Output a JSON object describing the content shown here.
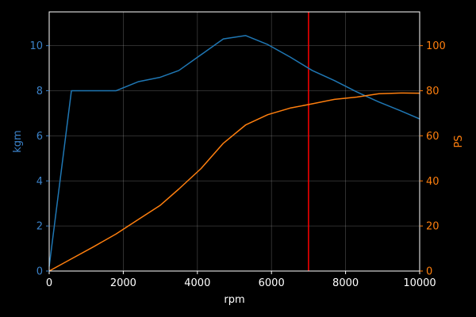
{
  "chart_data": {
    "type": "line",
    "xlabel": "rpm",
    "ylabel_left": "kgm",
    "ylabel_right": "PS",
    "xlim": [
      0,
      10000
    ],
    "ylim_left": [
      0,
      11.5
    ],
    "ylim_right": [
      0,
      115
    ],
    "x_ticks": [
      0,
      2000,
      4000,
      6000,
      8000,
      10000
    ],
    "y_ticks_left": [
      0,
      2,
      4,
      6,
      8,
      10
    ],
    "y_ticks_right": [
      0,
      20,
      40,
      60,
      80,
      100
    ],
    "grid": true,
    "vertical_line": {
      "x": 7000,
      "color": "#ff0000"
    },
    "series": [
      {
        "axis": "left",
        "color": "#1f77b4",
        "tick_color": "#3b82c9",
        "x": [
          0,
          600,
          1800,
          2400,
          3000,
          3500,
          4100,
          4700,
          5300,
          5900,
          6500,
          7100,
          7700,
          8300,
          8900,
          9500,
          10000
        ],
        "y": [
          0.2,
          8.0,
          8.0,
          8.4,
          8.6,
          8.9,
          9.6,
          10.3,
          10.45,
          10.05,
          9.5,
          8.9,
          8.45,
          7.95,
          7.5,
          7.1,
          6.75
        ]
      },
      {
        "axis": "right",
        "color": "#ff7f0e",
        "tick_color": "#ff7f0e",
        "x": [
          0,
          600,
          1200,
          1800,
          2400,
          3000,
          3500,
          4100,
          4700,
          5300,
          5900,
          6500,
          7100,
          7700,
          8300,
          8900,
          9500,
          10000
        ],
        "y": [
          0,
          5.4,
          10.8,
          16.4,
          22.8,
          29.2,
          36.4,
          45.5,
          56.7,
          64.8,
          69.4,
          72.3,
          74.2,
          76.2,
          77.2,
          78.7,
          79.0,
          78.9
        ]
      }
    ]
  }
}
